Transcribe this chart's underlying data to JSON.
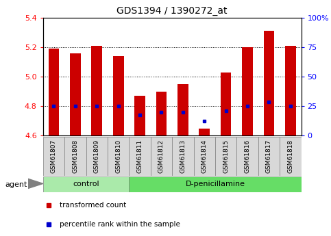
{
  "title": "GDS1394 / 1390272_at",
  "samples": [
    "GSM61807",
    "GSM61808",
    "GSM61809",
    "GSM61810",
    "GSM61811",
    "GSM61812",
    "GSM61813",
    "GSM61814",
    "GSM61815",
    "GSM61816",
    "GSM61817",
    "GSM61818"
  ],
  "groups": [
    "control",
    "control",
    "control",
    "control",
    "D-penicillamine",
    "D-penicillamine",
    "D-penicillamine",
    "D-penicillamine",
    "D-penicillamine",
    "D-penicillamine",
    "D-penicillamine",
    "D-penicillamine"
  ],
  "red_values": [
    5.19,
    5.16,
    5.21,
    5.14,
    4.87,
    4.9,
    4.95,
    4.65,
    5.03,
    5.2,
    5.31,
    5.21
  ],
  "blue_values": [
    4.8,
    4.8,
    4.8,
    4.8,
    4.74,
    4.76,
    4.76,
    4.7,
    4.77,
    4.8,
    4.83,
    4.8
  ],
  "ymin": 4.6,
  "ymax": 5.4,
  "yticks_left": [
    4.6,
    4.8,
    5.0,
    5.2,
    5.4
  ],
  "yticks_right": [
    0,
    25,
    50,
    75,
    100
  ],
  "bar_color": "#cc0000",
  "blue_color": "#0000cc",
  "control_color": "#aaeaaa",
  "treatment_color": "#66dd66",
  "agent_label": "agent",
  "group_labels": [
    "control",
    "D-penicillamine"
  ],
  "legend_red": "transformed count",
  "legend_blue": "percentile rank within the sample",
  "bar_width": 0.5,
  "tick_bg": "#d8d8d8"
}
